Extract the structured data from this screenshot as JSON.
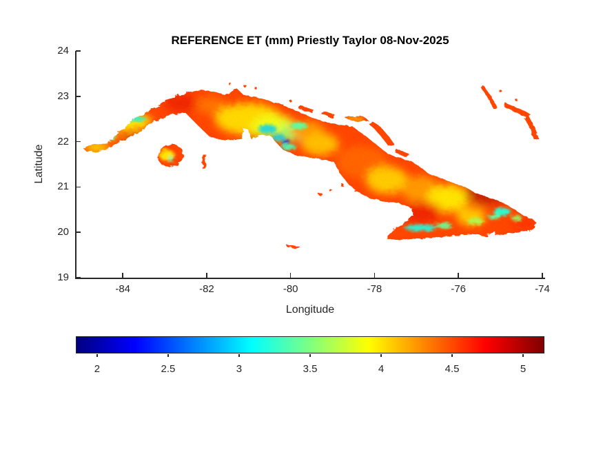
{
  "figure": {
    "title": "REFERENCE ET (mm) Priestly Taylor 08-Nov-2025"
  },
  "axes": {
    "xlabel": "Longitude",
    "ylabel": "Latitude",
    "xlim": [
      -85.12,
      -73.95
    ],
    "ylim": [
      19,
      24
    ],
    "xticks": [
      -84,
      -82,
      -80,
      -78,
      -76,
      -74
    ],
    "yticks": [
      19,
      20,
      21,
      22,
      23,
      24
    ],
    "axis_color": "#262626"
  },
  "colorbar": {
    "orientation": "horizontal",
    "colormap": "jet",
    "range": [
      1.85,
      5.15
    ],
    "ticks": [
      2,
      2.5,
      3,
      3.5,
      4,
      4.5,
      5
    ],
    "units": "mm"
  },
  "chart_data": {
    "type": "heatmap",
    "title": "REFERENCE ET (mm) Priestly Taylor 08-Nov-2025",
    "variable": "Reference evapotranspiration",
    "method": "Priestly Taylor",
    "date": "08-Nov-2025",
    "units": "mm",
    "region": "Cuba and nearby islands",
    "xlabel": "Longitude",
    "ylabel": "Latitude",
    "value_range_displayed": [
      2,
      5.2
    ],
    "dominant_value_range": [
      4.3,
      5.0
    ],
    "base_value": 4.62,
    "sample_points": [
      {
        "lon": -84.6,
        "lat": 21.9,
        "et": 4.1
      },
      {
        "lon": -83.8,
        "lat": 22.5,
        "et": 3.0
      },
      {
        "lon": -82.4,
        "lat": 23.0,
        "et": 4.8
      },
      {
        "lon": -81.0,
        "lat": 22.5,
        "et": 4.0
      },
      {
        "lon": -80.5,
        "lat": 22.3,
        "et": 3.0
      },
      {
        "lon": -80.1,
        "lat": 22.0,
        "et": 2.3
      },
      {
        "lon": -78.2,
        "lat": 21.5,
        "et": 4.5
      },
      {
        "lon": -77.6,
        "lat": 21.1,
        "et": 4.1
      },
      {
        "lon": -76.9,
        "lat": 20.1,
        "et": 3.1
      },
      {
        "lon": -76.2,
        "lat": 20.7,
        "et": 4.0
      },
      {
        "lon": -75.4,
        "lat": 20.85,
        "et": 4.95
      },
      {
        "lon": -74.95,
        "lat": 20.45,
        "et": 3.1
      },
      {
        "lon": -74.3,
        "lat": 20.2,
        "et": 4.7
      }
    ],
    "patch_format": [
      "lon",
      "lat",
      "rx_deg",
      "ry_deg",
      "et_value",
      "blur"
    ],
    "patches": [
      [
        -84.62,
        21.88,
        0.3,
        0.12,
        4.05,
        "soft"
      ],
      [
        -84.05,
        22.25,
        0.45,
        0.25,
        4.4,
        "soft"
      ],
      [
        -83.8,
        22.45,
        0.5,
        0.15,
        3.95,
        "soft"
      ],
      [
        -83.6,
        22.05,
        0.45,
        0.15,
        4.9,
        "soft"
      ],
      [
        -82.6,
        22.85,
        0.4,
        0.2,
        4.8,
        "soft"
      ],
      [
        -81.9,
        22.8,
        0.35,
        0.2,
        4.45,
        "soft"
      ],
      [
        -81.0,
        22.5,
        0.8,
        0.35,
        4.05,
        "soft"
      ],
      [
        -80.4,
        22.3,
        0.55,
        0.3,
        3.85,
        "soft"
      ],
      [
        -79.95,
        22.2,
        0.35,
        0.18,
        3.5,
        "soft"
      ],
      [
        -79.6,
        22.25,
        0.4,
        0.2,
        4.3,
        "soft"
      ],
      [
        -80.6,
        21.95,
        0.5,
        0.2,
        4.85,
        "soft"
      ],
      [
        -79.3,
        21.95,
        0.45,
        0.25,
        4.15,
        "soft"
      ],
      [
        -78.3,
        21.55,
        0.6,
        0.35,
        4.5,
        "soft"
      ],
      [
        -77.7,
        21.15,
        0.5,
        0.3,
        4.1,
        "soft"
      ],
      [
        -76.9,
        20.95,
        0.45,
        0.3,
        4.3,
        "soft"
      ],
      [
        -76.25,
        20.75,
        0.5,
        0.3,
        4.0,
        "soft"
      ],
      [
        -75.35,
        20.85,
        0.5,
        0.25,
        4.95,
        "soft"
      ],
      [
        -76.9,
        20.45,
        0.5,
        0.25,
        4.8,
        "soft"
      ],
      [
        -75.7,
        20.35,
        0.35,
        0.2,
        4.1,
        "soft"
      ],
      [
        -74.4,
        20.2,
        0.3,
        0.15,
        4.7,
        "soft"
      ],
      [
        -83.75,
        22.5,
        0.32,
        0.05,
        3.05,
        "sharp"
      ],
      [
        -84.3,
        22.1,
        0.15,
        0.05,
        3.4,
        "sharp"
      ],
      [
        -80.55,
        22.28,
        0.22,
        0.1,
        2.95,
        "sharp"
      ],
      [
        -80.12,
        22.0,
        0.09,
        0.06,
        2.25,
        "sharp"
      ],
      [
        -80.3,
        22.1,
        0.16,
        0.08,
        2.9,
        "sharp"
      ],
      [
        -79.8,
        22.35,
        0.2,
        0.08,
        3.3,
        "sharp"
      ],
      [
        -80.05,
        21.88,
        0.18,
        0.06,
        3.2,
        "sharp"
      ],
      [
        -76.9,
        20.1,
        0.38,
        0.07,
        3.05,
        "sharp"
      ],
      [
        -76.35,
        20.15,
        0.2,
        0.06,
        3.35,
        "sharp"
      ],
      [
        -74.95,
        20.45,
        0.2,
        0.09,
        3.1,
        "sharp"
      ],
      [
        -74.62,
        20.32,
        0.12,
        0.06,
        3.5,
        "sharp"
      ],
      [
        -75.6,
        20.25,
        0.18,
        0.07,
        3.6,
        "sharp"
      ],
      [
        -75.15,
        20.35,
        0.14,
        0.06,
        3.3,
        "sharp"
      ],
      [
        -82.95,
        21.7,
        0.18,
        0.12,
        4.0,
        "sharp"
      ],
      [
        -82.85,
        21.62,
        0.07,
        0.05,
        3.3,
        "sharp"
      ],
      [
        -78.45,
        22.5,
        0.2,
        0.06,
        4.3,
        "sharp"
      ]
    ],
    "land": {
      "mainland": [
        [
          -84.95,
          21.86
        ],
        [
          -84.72,
          21.94
        ],
        [
          -84.48,
          21.93
        ],
        [
          -84.22,
          22.08
        ],
        [
          -84.0,
          22.28
        ],
        [
          -83.78,
          22.48
        ],
        [
          -83.5,
          22.62
        ],
        [
          -83.2,
          22.78
        ],
        [
          -82.85,
          22.96
        ],
        [
          -82.5,
          23.08
        ],
        [
          -82.15,
          23.15
        ],
        [
          -81.82,
          23.1
        ],
        [
          -81.55,
          23.02
        ],
        [
          -81.28,
          23.17
        ],
        [
          -81.13,
          23.04
        ],
        [
          -80.75,
          22.96
        ],
        [
          -80.35,
          22.86
        ],
        [
          -79.95,
          22.72
        ],
        [
          -79.58,
          22.56
        ],
        [
          -79.22,
          22.44
        ],
        [
          -78.88,
          22.38
        ],
        [
          -78.52,
          22.33
        ],
        [
          -78.22,
          22.13
        ],
        [
          -77.95,
          21.93
        ],
        [
          -77.68,
          21.73
        ],
        [
          -77.38,
          21.63
        ],
        [
          -77.12,
          21.57
        ],
        [
          -76.92,
          21.44
        ],
        [
          -76.68,
          21.28
        ],
        [
          -76.38,
          21.18
        ],
        [
          -76.08,
          21.08
        ],
        [
          -75.8,
          20.98
        ],
        [
          -75.58,
          20.86
        ],
        [
          -75.32,
          20.78
        ],
        [
          -75.08,
          20.71
        ],
        [
          -74.88,
          20.62
        ],
        [
          -74.66,
          20.5
        ],
        [
          -74.44,
          20.36
        ],
        [
          -74.22,
          20.28
        ],
        [
          -74.13,
          20.2
        ],
        [
          -74.22,
          20.06
        ],
        [
          -74.55,
          20.01
        ],
        [
          -74.9,
          19.95
        ],
        [
          -75.1,
          19.91
        ],
        [
          -75.13,
          20.02
        ],
        [
          -75.24,
          20.0
        ],
        [
          -75.32,
          19.9
        ],
        [
          -75.6,
          19.95
        ],
        [
          -75.95,
          19.94
        ],
        [
          -76.3,
          19.9
        ],
        [
          -76.7,
          19.87
        ],
        [
          -77.1,
          19.86
        ],
        [
          -77.48,
          19.84
        ],
        [
          -77.72,
          19.87
        ],
        [
          -77.54,
          20.05
        ],
        [
          -77.28,
          20.22
        ],
        [
          -77.08,
          20.38
        ],
        [
          -77.12,
          20.54
        ],
        [
          -77.42,
          20.64
        ],
        [
          -77.78,
          20.69
        ],
        [
          -78.08,
          20.74
        ],
        [
          -78.38,
          20.88
        ],
        [
          -78.62,
          21.06
        ],
        [
          -78.82,
          21.3
        ],
        [
          -78.96,
          21.55
        ],
        [
          -79.28,
          21.61
        ],
        [
          -79.62,
          21.66
        ],
        [
          -79.92,
          21.72
        ],
        [
          -80.18,
          21.82
        ],
        [
          -80.36,
          22.0
        ],
        [
          -80.46,
          22.12
        ],
        [
          -80.72,
          22.16
        ],
        [
          -80.95,
          22.07
        ],
        [
          -81.02,
          22.28
        ],
        [
          -81.13,
          22.28
        ],
        [
          -81.17,
          22.06
        ],
        [
          -81.55,
          22.03
        ],
        [
          -81.92,
          22.1
        ],
        [
          -82.2,
          22.35
        ],
        [
          -82.5,
          22.63
        ],
        [
          -82.95,
          22.58
        ],
        [
          -83.3,
          22.4
        ],
        [
          -83.62,
          22.2
        ],
        [
          -83.95,
          22.06
        ],
        [
          -84.25,
          21.9
        ],
        [
          -84.56,
          21.79
        ],
        [
          -84.85,
          21.77
        ]
      ],
      "islands": [
        {
          "name": "isla-de-la-juventud",
          "pts": [
            [
              -83.18,
              21.62
            ],
            [
              -83.12,
              21.8
            ],
            [
              -82.98,
              21.92
            ],
            [
              -82.78,
              21.95
            ],
            [
              -82.6,
              21.85
            ],
            [
              -82.55,
              21.65
            ],
            [
              -82.68,
              21.48
            ],
            [
              -82.9,
              21.44
            ],
            [
              -83.08,
              21.5
            ]
          ]
        },
        {
          "name": "cay-sliver",
          "pts": [
            [
              -82.1,
              21.72
            ],
            [
              -82.02,
              21.72
            ],
            [
              -82.02,
              21.4
            ],
            [
              -82.1,
              21.4
            ]
          ]
        },
        {
          "name": "cayo-fragoso",
          "pts": [
            [
              -79.78,
              22.8
            ],
            [
              -79.45,
              22.7
            ],
            [
              -79.48,
              22.63
            ],
            [
              -79.82,
              22.73
            ]
          ]
        },
        {
          "name": "cayo-santa-maria",
          "pts": [
            [
              -79.22,
              22.68
            ],
            [
              -78.95,
              22.6
            ],
            [
              -79.0,
              22.53
            ],
            [
              -79.27,
              22.61
            ]
          ]
        },
        {
          "name": "cayo-coco",
          "pts": [
            [
              -78.72,
              22.54
            ],
            [
              -78.3,
              22.57
            ],
            [
              -78.14,
              22.47
            ],
            [
              -78.5,
              22.44
            ]
          ]
        },
        {
          "name": "cayo-romano",
          "pts": [
            [
              -78.05,
              22.45
            ],
            [
              -77.85,
              22.32
            ],
            [
              -77.63,
              22.08
            ],
            [
              -77.52,
              21.93
            ],
            [
              -77.66,
              21.9
            ],
            [
              -77.85,
              22.12
            ],
            [
              -78.02,
              22.3
            ],
            [
              -78.15,
              22.4
            ]
          ]
        },
        {
          "name": "cayo-sabinal",
          "pts": [
            [
              -77.48,
              21.84
            ],
            [
              -77.18,
              21.73
            ],
            [
              -77.24,
              21.66
            ],
            [
              -77.52,
              21.77
            ]
          ]
        },
        {
          "name": "cayman-brac",
          "pts": [
            [
              -80.1,
              19.73
            ],
            [
              -79.78,
              19.69
            ],
            [
              -79.8,
              19.64
            ],
            [
              -80.09,
              19.68
            ]
          ]
        },
        {
          "name": "long-island-bahamas",
          "pts": [
            [
              -75.4,
              23.24
            ],
            [
              -75.22,
              23.0
            ],
            [
              -75.08,
              22.76
            ],
            [
              -75.16,
              22.72
            ],
            [
              -75.32,
              23.0
            ],
            [
              -75.47,
              23.2
            ]
          ]
        },
        {
          "name": "crooked-island",
          "pts": [
            [
              -74.88,
              22.86
            ],
            [
              -74.55,
              22.72
            ],
            [
              -74.3,
              22.62
            ],
            [
              -74.34,
              22.52
            ],
            [
              -74.66,
              22.66
            ],
            [
              -74.92,
              22.78
            ]
          ]
        },
        {
          "name": "acklins-island",
          "pts": [
            [
              -74.32,
              22.56
            ],
            [
              -74.18,
              22.32
            ],
            [
              -74.1,
              22.08
            ],
            [
              -74.2,
              22.05
            ],
            [
              -74.3,
              22.3
            ],
            [
              -74.42,
              22.5
            ]
          ]
        }
      ],
      "dots": [
        [
          -81.45,
          23.28,
          0.03
        ],
        [
          -81.1,
          23.24,
          0.035
        ],
        [
          -80.85,
          23.2,
          0.03
        ],
        [
          -80.0,
          22.9,
          0.03
        ],
        [
          -79.3,
          20.85,
          0.04
        ],
        [
          -79.05,
          20.93,
          0.035
        ],
        [
          -78.75,
          21.02,
          0.04
        ],
        [
          -78.45,
          20.92,
          0.03
        ],
        [
          -75.0,
          23.12,
          0.03
        ],
        [
          -74.62,
          22.92,
          0.03
        ]
      ]
    }
  }
}
